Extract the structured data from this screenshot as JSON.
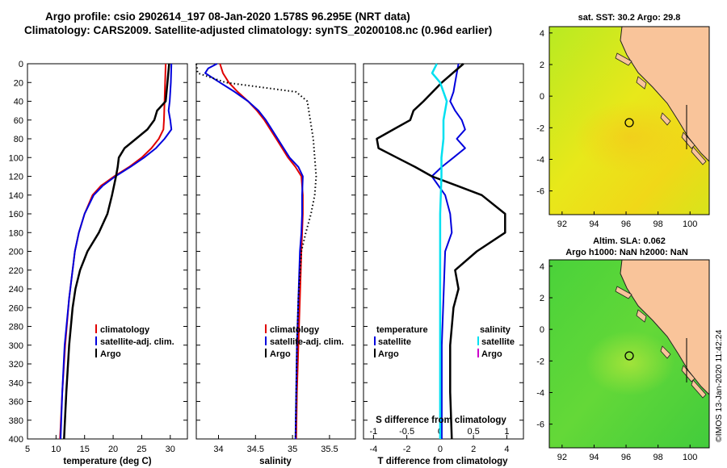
{
  "title_line1": "Argo profile: csio 2902614_197 08-Jan-2020 1.578S 96.295E (NRT data)",
  "title_line2": "Climatology: CARS2009. Satellite-adjusted climatology: synTS_20200108.nc (0.96d earlier)",
  "footer_vertical": "©IMOS 13-Jan-2020 11:42:24",
  "colors": {
    "climatology": "#e00000",
    "satellite": "#0000dd",
    "argo": "#000000",
    "sat_salinity": "#00e0f0",
    "argo_salinity": "#cc00cc",
    "land": "#f9c49a"
  },
  "chart_data": [
    {
      "type": "line",
      "id": "temperature",
      "xlabel": "temperature (deg C)",
      "ylabel": "",
      "xlim": [
        5,
        33
      ],
      "ylim": [
        400,
        0
      ],
      "xticks": [
        "5",
        "10",
        "15",
        "20",
        "25",
        "30"
      ],
      "yticks": [
        "0",
        "20",
        "40",
        "60",
        "80",
        "100",
        "120",
        "140",
        "160",
        "180",
        "200",
        "220",
        "240",
        "260",
        "280",
        "300",
        "320",
        "340",
        "360",
        "380",
        "400"
      ],
      "legend": [
        "climatology",
        "satellite-adj. clim.",
        "Argo"
      ],
      "series": [
        {
          "name": "climatology",
          "depth": [
            0,
            20,
            40,
            60,
            70,
            80,
            90,
            100,
            110,
            120,
            130,
            140,
            160,
            180,
            200,
            250,
            300,
            350,
            400
          ],
          "values": [
            29.2,
            29.1,
            29.0,
            28.9,
            28.8,
            28.0,
            26.7,
            25.0,
            22.8,
            20.2,
            17.9,
            16.4,
            15.0,
            14.0,
            13.3,
            12.3,
            11.6,
            11.1,
            10.7
          ]
        },
        {
          "name": "satellite-adj. clim.",
          "depth": [
            0,
            20,
            40,
            50,
            60,
            70,
            80,
            90,
            100,
            110,
            120,
            130,
            140,
            160,
            180,
            200,
            250,
            300,
            350,
            400
          ],
          "values": [
            30.2,
            30.1,
            29.9,
            29.7,
            30.0,
            30.2,
            29.0,
            27.5,
            25.4,
            23.0,
            20.4,
            18.2,
            16.6,
            15.0,
            14.0,
            13.3,
            12.3,
            11.5,
            11.1,
            10.8
          ]
        },
        {
          "name": "Argo",
          "depth": [
            0,
            20,
            40,
            50,
            60,
            70,
            80,
            90,
            100,
            110,
            120,
            140,
            160,
            180,
            200,
            220,
            240,
            260,
            300,
            350,
            400
          ],
          "values": [
            29.8,
            29.5,
            29.2,
            27.7,
            27.2,
            26.0,
            24.0,
            22.0,
            21.0,
            20.8,
            20.5,
            19.8,
            19.0,
            17.5,
            15.5,
            14.2,
            13.4,
            12.9,
            12.3,
            11.8,
            11.4
          ]
        }
      ]
    },
    {
      "type": "line",
      "id": "salinity",
      "xlabel": "salinity",
      "xlim": [
        33.7,
        35.85
      ],
      "ylim": [
        400,
        0
      ],
      "xticks": [
        "34",
        "34.5",
        "35",
        "35.5"
      ],
      "legend": [
        "climatology",
        "satellite-adj. clim.",
        "Argo"
      ],
      "series": [
        {
          "name": "climatology",
          "depth": [
            0,
            10,
            20,
            30,
            40,
            50,
            60,
            70,
            80,
            90,
            100,
            110,
            120,
            140,
            160,
            180,
            200,
            250,
            300,
            350,
            400
          ],
          "values": [
            34.02,
            34.06,
            34.14,
            34.26,
            34.4,
            34.52,
            34.62,
            34.7,
            34.78,
            34.86,
            34.94,
            35.04,
            35.12,
            35.14,
            35.14,
            35.13,
            35.12,
            35.1,
            35.08,
            35.06,
            35.05
          ]
        },
        {
          "name": "satellite-adj. clim.",
          "depth": [
            0,
            5,
            10,
            20,
            30,
            40,
            50,
            60,
            70,
            80,
            90,
            100,
            110,
            120,
            140,
            160,
            180,
            200,
            250,
            300,
            350,
            400
          ],
          "values": [
            33.98,
            33.86,
            33.82,
            34.02,
            34.22,
            34.4,
            34.54,
            34.64,
            34.72,
            34.8,
            34.88,
            34.96,
            35.08,
            35.14,
            35.13,
            35.13,
            35.12,
            35.1,
            35.08,
            35.06,
            35.05,
            35.04
          ]
        },
        {
          "name": "Argo",
          "depth": [
            0,
            10,
            20,
            30,
            40,
            60,
            80,
            100,
            120,
            140,
            160,
            180,
            200,
            250,
            300,
            350,
            400
          ],
          "values": [
            33.7,
            33.72,
            34.1,
            35.05,
            35.2,
            35.24,
            35.28,
            35.3,
            35.32,
            35.3,
            35.25,
            35.18,
            35.12,
            35.08,
            35.06,
            35.05,
            35.04
          ],
          "style": "dotted"
        }
      ]
    },
    {
      "type": "line",
      "id": "difference",
      "xlabel": "T difference from climatology",
      "xlabel_top": "S difference from climatology",
      "xlim": [
        -4.6,
        5.0
      ],
      "ylim": [
        400,
        0
      ],
      "xticks": [
        "-4",
        "-2",
        "0",
        "2",
        "4"
      ],
      "xticks_top": [
        "-1",
        "-0.5",
        "0",
        "0.5",
        "1"
      ],
      "legend_left_title": "temperature",
      "legend_left": [
        "satellite",
        "Argo"
      ],
      "legend_right_title": "salinity",
      "legend_right": [
        "satellite",
        "Argo"
      ],
      "series": [
        {
          "name": "T satellite",
          "depth": [
            0,
            10,
            20,
            30,
            40,
            50,
            60,
            70,
            80,
            90,
            100,
            110,
            120,
            140,
            160,
            180,
            200,
            250,
            300,
            350,
            400
          ],
          "values": [
            1.1,
            1.0,
            0.9,
            0.8,
            0.6,
            0.9,
            1.3,
            1.5,
            1.0,
            1.5,
            0.8,
            0.1,
            -0.5,
            0.3,
            0.6,
            0.7,
            0.3,
            0.2,
            0.1,
            0.1,
            0.1
          ]
        },
        {
          "name": "T Argo",
          "depth": [
            0,
            20,
            40,
            50,
            60,
            70,
            80,
            90,
            100,
            110,
            120,
            130,
            140,
            160,
            180,
            200,
            220,
            240,
            260,
            300,
            350,
            400
          ],
          "values": [
            1.4,
            0.1,
            -1.0,
            -1.6,
            -1.8,
            -2.8,
            -3.8,
            -3.7,
            -2.6,
            -1.5,
            -0.5,
            1.0,
            2.5,
            3.9,
            3.9,
            2.2,
            0.9,
            1.1,
            0.8,
            0.6,
            0.6,
            0.7
          ]
        },
        {
          "name": "S satellite",
          "depth": [
            0,
            10,
            20,
            30,
            40,
            60,
            80,
            100,
            120,
            140,
            160,
            200,
            250,
            300,
            350,
            400
          ],
          "values": [
            -0.05,
            -0.12,
            0.0,
            0.05,
            0.1,
            0.05,
            0.05,
            0.02,
            0.02,
            0.01,
            0.0,
            0.0,
            0.0,
            0.0,
            0.0,
            0.0
          ]
        }
      ]
    },
    {
      "type": "heatmap",
      "id": "sst_map",
      "title": "sat. SST: 30.2  Argo: 29.8",
      "xlim": [
        91.2,
        101.2
      ],
      "ylim": [
        -7.5,
        4.4
      ],
      "xticks": [
        "92",
        "94",
        "96",
        "98",
        "100"
      ],
      "yticks": [
        "4",
        "2",
        "0",
        "-2",
        "-4",
        "-6"
      ],
      "marker": {
        "lon": 96.295,
        "lat": -1.578
      }
    },
    {
      "type": "heatmap",
      "id": "sla_map",
      "title": "Altim. SLA: 0.062",
      "subtitle": "Argo h1000: NaN h2000: NaN",
      "xlim": [
        91.2,
        101.2
      ],
      "ylim": [
        -7.5,
        4.4
      ],
      "xticks": [
        "92",
        "94",
        "96",
        "98",
        "100"
      ],
      "yticks": [
        "4",
        "2",
        "0",
        "-2",
        "-4",
        "-6"
      ],
      "marker": {
        "lon": 96.295,
        "lat": -1.578
      }
    }
  ]
}
